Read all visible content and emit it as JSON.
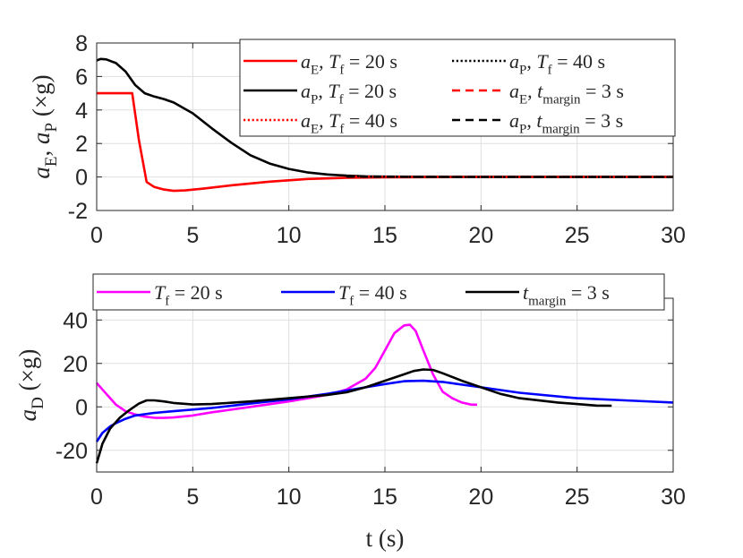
{
  "chart_data": [
    {
      "type": "line",
      "ylabel": "a_E, a_P (×g)",
      "xlabel": "",
      "xlim": [
        0,
        30
      ],
      "ylim": [
        -2,
        8
      ],
      "xticks": [
        "0",
        "5",
        "10",
        "15",
        "20",
        "25",
        "30"
      ],
      "yticks": [
        "-2",
        "0",
        "2",
        "4",
        "6",
        "8"
      ],
      "grid": true,
      "legend_position": "top-right",
      "legend": [
        "a_E, T_f = 20 s",
        "a_P, T_f = 40 s",
        "a_P, T_f = 20 s",
        "a_E, t_margin = 3 s",
        "a_E, T_f = 40 s",
        "a_P, t_margin = 3 s"
      ],
      "series": [
        {
          "name": "a_E, T_f = 20 s",
          "color": "#ff0000",
          "dash": "solid",
          "x": [
            0,
            1.85,
            2.2,
            2.6,
            3.0,
            3.5,
            4.0,
            4.6,
            5.5,
            7,
            9,
            11,
            13,
            15,
            20,
            25,
            30
          ],
          "y": [
            5,
            5,
            2.2,
            -0.3,
            -0.6,
            -0.75,
            -0.83,
            -0.8,
            -0.7,
            -0.5,
            -0.28,
            -0.12,
            -0.05,
            -0.02,
            0,
            0,
            0
          ]
        },
        {
          "name": "a_P, T_f = 40 s",
          "color": "#000000",
          "dash": "dotted",
          "x": [
            13,
            20,
            25,
            30
          ],
          "y": [
            0.02,
            0,
            0,
            0
          ]
        },
        {
          "name": "a_P, T_f = 20 s",
          "color": "#000000",
          "dash": "solid",
          "x": [
            0,
            0.2,
            0.5,
            1.0,
            1.5,
            2.0,
            2.5,
            3.0,
            3.5,
            4.0,
            5.0,
            6.0,
            7.0,
            8.0,
            9.0,
            10.0,
            11.0,
            12.0,
            13.0,
            14.0,
            15.0,
            17.0,
            20.0,
            30.0
          ],
          "y": [
            6.95,
            7.05,
            7.02,
            6.8,
            6.3,
            5.5,
            5.0,
            4.8,
            4.65,
            4.45,
            3.8,
            2.9,
            2.05,
            1.3,
            0.8,
            0.48,
            0.27,
            0.15,
            0.08,
            0.04,
            0.02,
            0.01,
            0,
            0
          ]
        },
        {
          "name": "a_E, t_margin = 3 s",
          "color": "#ff0000",
          "dash": "dashed",
          "x": [
            13,
            20,
            25,
            30
          ],
          "y": [
            0.02,
            0,
            0,
            0
          ]
        },
        {
          "name": "a_E, T_f = 40 s",
          "color": "#ff0000",
          "dash": "dotted",
          "x": [
            13,
            20,
            25,
            30
          ],
          "y": [
            0.02,
            0,
            0,
            0
          ]
        },
        {
          "name": "a_P, t_margin = 3 s",
          "color": "#000000",
          "dash": "dashed",
          "x": [
            13,
            20,
            25,
            30
          ],
          "y": [
            0.02,
            0,
            0,
            0
          ]
        }
      ]
    },
    {
      "type": "line",
      "ylabel": "a_D (×g)",
      "xlabel": "t (s)",
      "xlim": [
        0,
        30
      ],
      "ylim": [
        -30,
        50
      ],
      "xticks": [
        "0",
        "5",
        "10",
        "15",
        "20",
        "25",
        "30"
      ],
      "yticks": [
        "-20",
        "0",
        "20",
        "40"
      ],
      "grid": true,
      "legend_position": "top",
      "legend": [
        "T_f = 20 s",
        "T_f = 40 s",
        "t_margin = 3 s"
      ],
      "series": [
        {
          "name": "T_f = 20 s",
          "color": "#ff00ff",
          "dash": "solid",
          "x": [
            0,
            0.5,
            1.0,
            1.5,
            2.0,
            2.5,
            3.0,
            3.5,
            4.0,
            5.0,
            6.0,
            8.0,
            10.0,
            11.0,
            12.0,
            13.0,
            14.0,
            14.5,
            15.0,
            15.5,
            16.0,
            16.3,
            16.6,
            17.0,
            17.5,
            18.0,
            18.5,
            19.0,
            19.5,
            19.8
          ],
          "y": [
            11,
            6,
            1,
            -2,
            -3.5,
            -4.5,
            -5,
            -5.1,
            -4.9,
            -4,
            -2.5,
            0,
            2.5,
            4,
            5.5,
            8,
            13,
            18,
            26,
            34,
            37.5,
            37.8,
            35,
            26,
            15,
            7,
            4,
            2,
            1,
            1
          ]
        },
        {
          "name": "T_f = 40 s",
          "color": "#0000ff",
          "dash": "solid",
          "x": [
            0,
            0.3,
            0.7,
            1.0,
            1.5,
            2.0,
            3.0,
            4.0,
            6.0,
            8.0,
            10.0,
            12.0,
            14.0,
            15.0,
            16.0,
            17.0,
            18.0,
            20.0,
            22.0,
            25.0,
            28.0,
            30.0
          ],
          "y": [
            -16,
            -12,
            -9,
            -7.5,
            -5.5,
            -4,
            -2.8,
            -2,
            -0.5,
            1.5,
            3.5,
            6,
            9,
            10.5,
            11.8,
            12,
            11.5,
            9,
            6.5,
            4,
            2.8,
            2
          ]
        },
        {
          "name": "t_margin = 3 s",
          "color": "#000000",
          "dash": "solid",
          "x": [
            0,
            0.3,
            0.7,
            1.2,
            1.7,
            2.2,
            2.6,
            3.0,
            3.5,
            4.0,
            5.0,
            6.0,
            8.0,
            10.0,
            12.0,
            13.0,
            14.0,
            15.0,
            16.0,
            16.5,
            17.0,
            17.5,
            18.0,
            19.0,
            20.0,
            21.0,
            22.0,
            24.0,
            26.0,
            26.8
          ],
          "y": [
            -26,
            -17,
            -10,
            -5,
            -1.5,
            1.5,
            3,
            3,
            2.5,
            1.8,
            1.1,
            1.3,
            2.5,
            4,
            5.5,
            6.7,
            9,
            12,
            15,
            16.5,
            17.2,
            17,
            15.5,
            12,
            9,
            6,
            4,
            2,
            0.6,
            0.5
          ]
        }
      ]
    }
  ]
}
